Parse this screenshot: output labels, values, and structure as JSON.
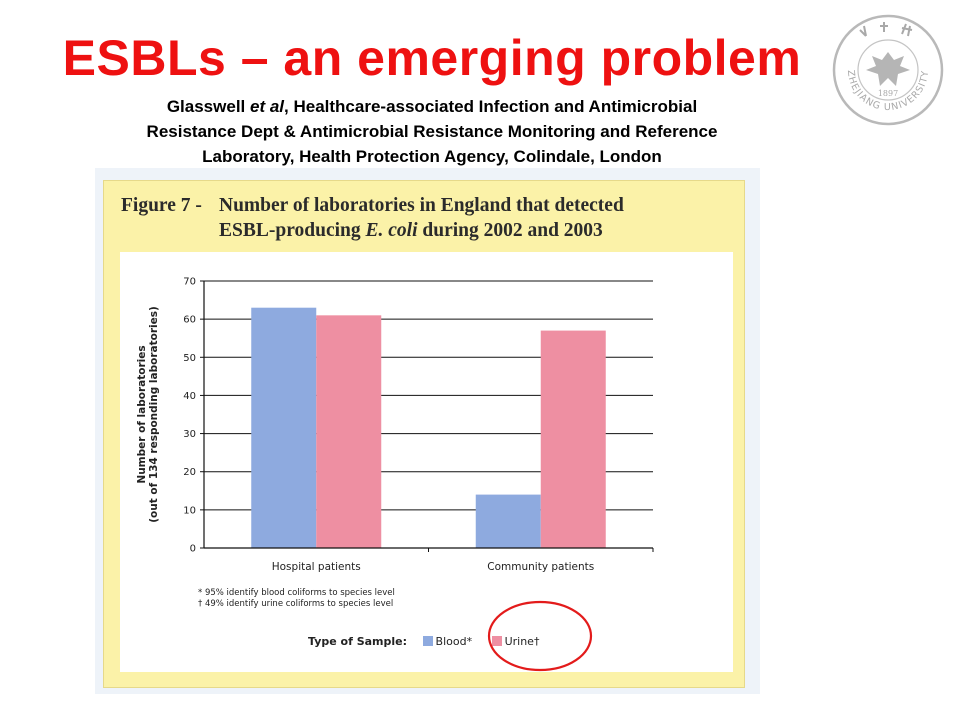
{
  "slide": {
    "title": "ESBLs – an emerging problem",
    "citation_author": "Glasswell",
    "citation_etal": "et al",
    "citation_line1_rest": ", Healthcare-associated Infection and Antimicrobial",
    "citation_line2": "Resistance Dept & Antimicrobial Resistance Monitoring and Reference",
    "citation_line3": "Laboratory, Health Protection Agency, Colindale, London"
  },
  "logo": {
    "icon": "zhejiang-university-seal-icon",
    "year": "1897",
    "text": "ZHEJIANG UNIVERSITY",
    "color": "#b9b9b9"
  },
  "figure": {
    "label": "Figure 7 -",
    "title_line1": "Number of laboratories in England that detected",
    "title_line2_pre": "ESBL-producing ",
    "title_line2_italic": "E. coli",
    "title_line2_post": " during 2002 and 2003",
    "footnote1": "* 95% identify blood coliforms to species level",
    "footnote2": "† 49% identify urine coliforms to species level",
    "legend_title": "Type of Sample:",
    "legend_blood": "Blood*",
    "legend_urine": "Urine†"
  },
  "colors": {
    "blood": "#8eaadf",
    "urine": "#ee8fa2",
    "annotation": "#e31b1b"
  },
  "chart_data": {
    "type": "bar",
    "categories": [
      "Hospital patients",
      "Community patients"
    ],
    "series": [
      {
        "name": "Blood*",
        "values": [
          63,
          14
        ]
      },
      {
        "name": "Urine†",
        "values": [
          61,
          57
        ]
      }
    ],
    "ylabel_line1": "Number of laboratories",
    "ylabel_line2": "(out of 134 responding laboratories)",
    "ylim": [
      0,
      70
    ],
    "yticks": [
      "0",
      "10",
      "20",
      "30",
      "40",
      "50",
      "60",
      "70"
    ],
    "grid": true,
    "legend_position": "bottom"
  }
}
